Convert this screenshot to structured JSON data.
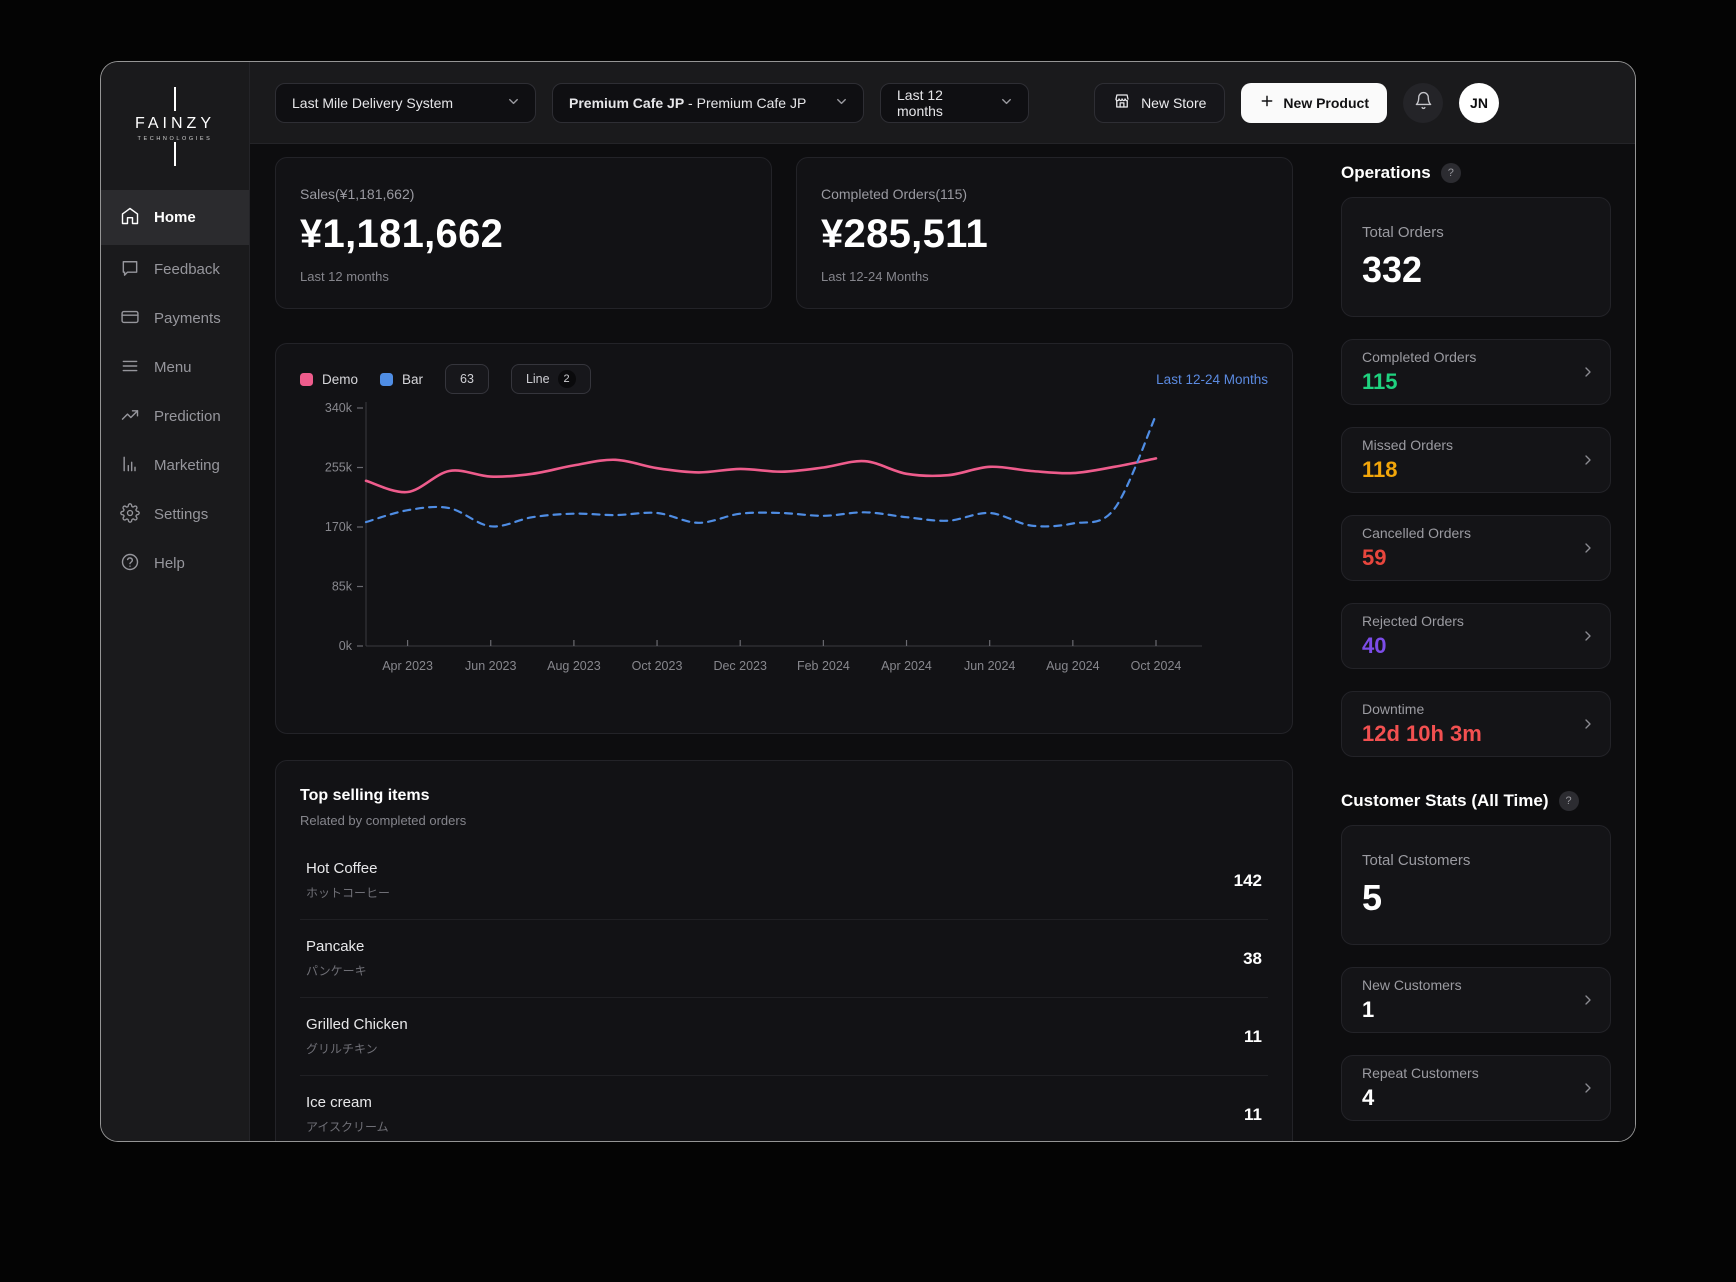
{
  "brand": {
    "name": "FAINZY",
    "sub": "TECHNOLOGIES"
  },
  "ui": {
    "help_badge": "?"
  },
  "sidebar": {
    "items": [
      {
        "label": "Home",
        "active": true
      },
      {
        "label": "Feedback"
      },
      {
        "label": "Payments"
      },
      {
        "label": "Menu"
      },
      {
        "label": "Prediction"
      },
      {
        "label": "Marketing"
      },
      {
        "label": "Settings"
      },
      {
        "label": "Help"
      }
    ]
  },
  "header": {
    "system_select": "Last Mile Delivery System",
    "store_select_bold": "Premium Cafe JP",
    "store_select_rest": " - Premium Cafe JP",
    "range_select": "Last 12 months",
    "new_store": "New Store",
    "new_product": "New Product",
    "avatar_initials": "JN"
  },
  "summary_cards": [
    {
      "label": "Sales(¥1,181,662)",
      "value": "¥1,181,662",
      "caption": "Last 12 months"
    },
    {
      "label": "Completed Orders(115)",
      "value": "¥285,511",
      "caption": "Last 12-24 Months"
    }
  ],
  "chart": {
    "buttons": [
      {
        "label": "63"
      },
      {
        "label": "Line",
        "badge": "2"
      }
    ],
    "period_link": "Last 12-24 Months",
    "link_color": "#5b8ae0"
  },
  "chart_data": {
    "type": "line",
    "title": "",
    "xlabel": "",
    "ylabel": "",
    "ylim": [
      0,
      340000
    ],
    "grid": false,
    "legend_position": "top-left",
    "x_months": [
      "Mar 2023",
      "Apr 2023",
      "May 2023",
      "Jun 2023",
      "Jul 2023",
      "Aug 2023",
      "Sep 2023",
      "Oct 2023",
      "Nov 2023",
      "Dec 2023",
      "Jan 2024",
      "Feb 2024",
      "Mar 2024",
      "Apr 2024",
      "May 2024",
      "Jun 2024",
      "Jul 2024",
      "Aug 2024",
      "Sep 2024",
      "Oct 2024"
    ],
    "x_tick_labels": [
      "Apr 2023",
      "Jun 2023",
      "Aug 2023",
      "Oct 2023",
      "Dec 2023",
      "Feb 2024",
      "Apr 2024",
      "Jun 2024",
      "Aug 2024",
      "Oct 2024"
    ],
    "y_tick_labels": [
      "0k",
      "85k",
      "170k",
      "255k",
      "340k"
    ],
    "series": [
      {
        "name": "Demo",
        "color": "#ee5c8c",
        "style": "solid",
        "values_k": [
          236,
          220,
          250,
          242,
          246,
          258,
          266,
          254,
          248,
          253,
          249,
          255,
          264,
          246,
          244,
          256,
          250,
          247,
          256,
          268
        ]
      },
      {
        "name": "Bar",
        "color": "#4f8de4",
        "style": "dashed",
        "values_k": [
          177,
          194,
          197,
          171,
          184,
          189,
          187,
          190,
          176,
          189,
          190,
          186,
          191,
          184,
          179,
          190,
          172,
          175,
          196,
          330
        ]
      }
    ]
  },
  "top_selling": {
    "title": "Top selling items",
    "subtitle": "Related by completed orders",
    "items": [
      {
        "name": "Hot Coffee",
        "jp": "ホットコーヒー",
        "value": "142"
      },
      {
        "name": "Pancake",
        "jp": "パンケーキ",
        "value": "38"
      },
      {
        "name": "Grilled Chicken",
        "jp": "グリルチキン",
        "value": "11"
      },
      {
        "name": "Ice cream",
        "jp": "アイスクリーム",
        "value": "11"
      }
    ]
  },
  "operations": {
    "title": "Operations",
    "cards": [
      {
        "label": "Total Orders",
        "value": "332",
        "color": "#ffffff"
      },
      {
        "label": "Completed Orders",
        "value": "115",
        "color": "#1fd27f"
      },
      {
        "label": "Missed Orders",
        "value": "118",
        "color": "#f2a60a"
      },
      {
        "label": "Cancelled Orders",
        "value": "59",
        "color": "#e8463d"
      },
      {
        "label": "Rejected Orders",
        "value": "40",
        "color": "#7c4ce8"
      },
      {
        "label": "Downtime",
        "value": "12d 10h 3m",
        "color": "#f25050"
      }
    ]
  },
  "customer_stats": {
    "title": "Customer Stats (All Time)",
    "cards": [
      {
        "label": "Total Customers",
        "value": "5",
        "color": "#ffffff"
      },
      {
        "label": "New Customers",
        "value": "1",
        "color": "#ffffff"
      },
      {
        "label": "Repeat Customers",
        "value": "4",
        "color": "#ffffff"
      }
    ]
  }
}
